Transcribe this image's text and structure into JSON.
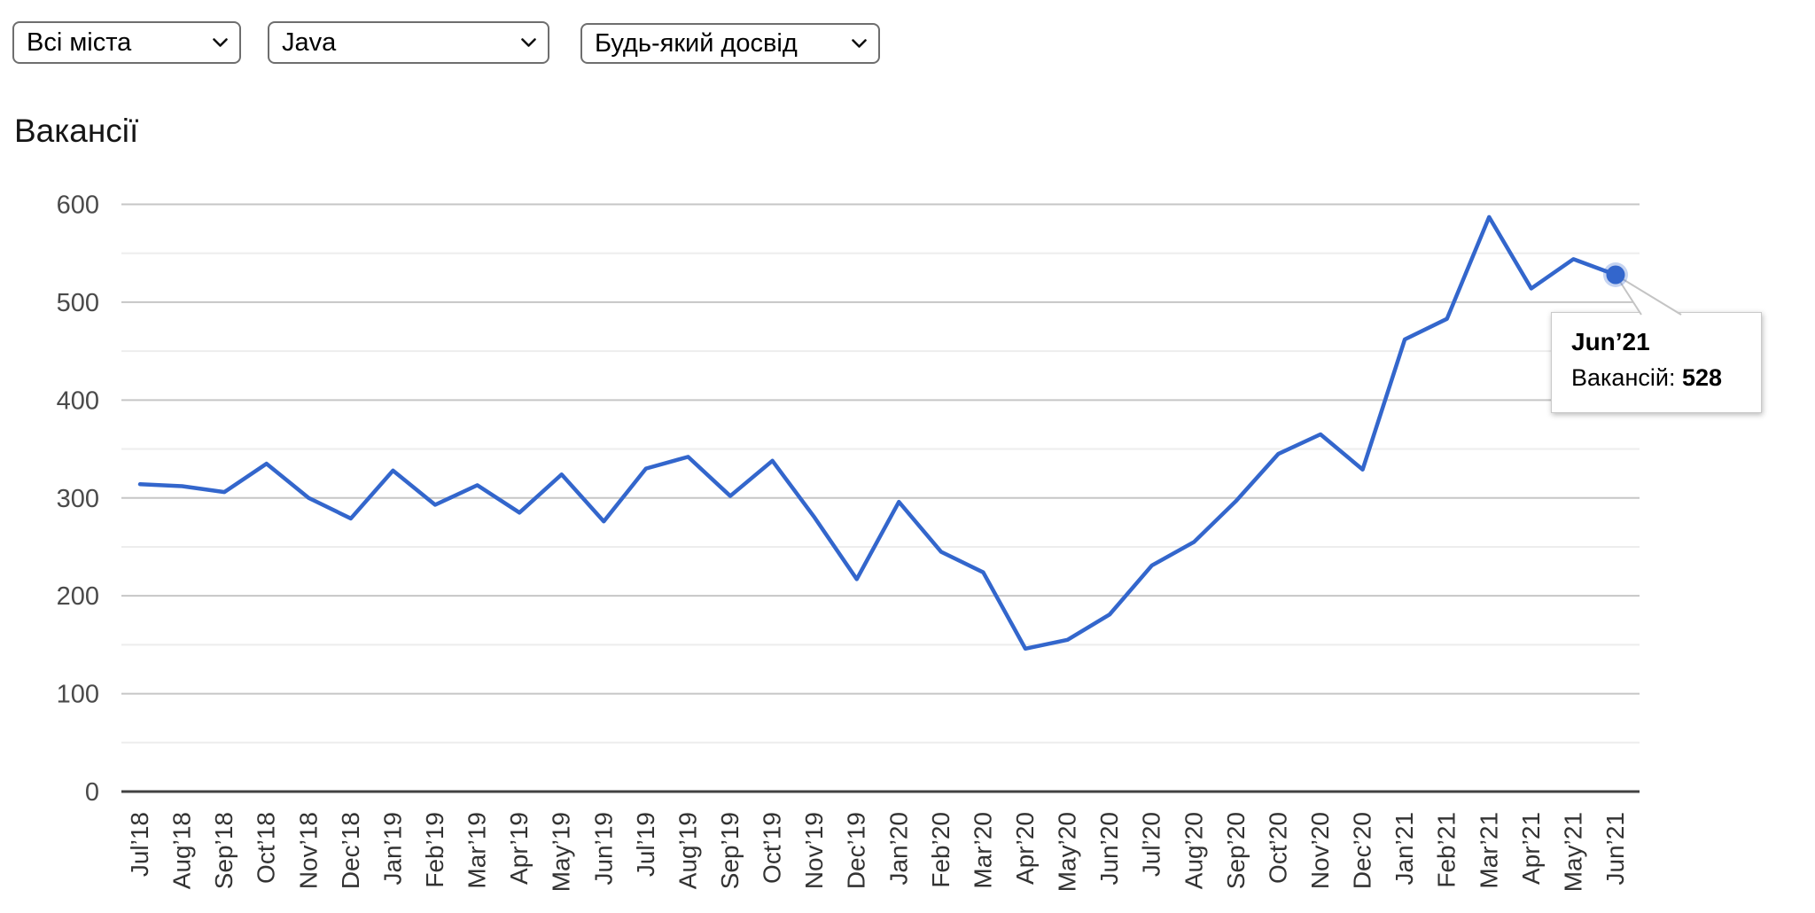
{
  "filters": {
    "city": {
      "value": "Всі міста"
    },
    "technology": {
      "value": "Java"
    },
    "experience": {
      "value": "Будь-який досвід"
    }
  },
  "chart": {
    "title": "Вакансії"
  },
  "tooltip": {
    "month": "Jun’21",
    "label": "Вакансій:",
    "value": "528"
  },
  "colors": {
    "line": "#3366cc",
    "axis_baseline": "#424242",
    "grid_major": "#c6c6c6",
    "grid_minor": "#ededed",
    "y_label": "#4a4a4a",
    "x_label": "#333333"
  },
  "chart_data": {
    "type": "line",
    "title": "Вакансії",
    "x": [
      "Jul’18",
      "Aug’18",
      "Sep’18",
      "Oct’18",
      "Nov’18",
      "Dec’18",
      "Jan’19",
      "Feb’19",
      "Mar’19",
      "Apr’19",
      "May’19",
      "Jun’19",
      "Jul’19",
      "Aug’19",
      "Sep’19",
      "Oct’19",
      "Nov’19",
      "Dec’19",
      "Jan’20",
      "Feb’20",
      "Mar’20",
      "Apr’20",
      "May’20",
      "Jun’20",
      "Jul’20",
      "Aug’20",
      "Sep’20",
      "Oct’20",
      "Nov’20",
      "Dec’20",
      "Jan’21",
      "Feb’21",
      "Mar’21",
      "Apr’21",
      "May’21",
      "Jun’21"
    ],
    "series": [
      {
        "name": "Вакансій",
        "values": [
          314,
          312,
          306,
          335,
          300,
          279,
          328,
          293,
          313,
          285,
          324,
          276,
          330,
          342,
          302,
          338,
          280,
          217,
          296,
          245,
          224,
          146,
          155,
          181,
          231,
          255,
          297,
          345,
          365,
          329,
          462,
          483,
          587,
          514,
          544,
          528
        ]
      }
    ],
    "ylim": [
      0,
      600
    ],
    "y_major_step": 100,
    "y_minor_step": 50,
    "yticks": [
      0,
      100,
      200,
      300,
      400,
      500,
      600
    ],
    "grid": true,
    "legend": "none",
    "highlight_point": {
      "x": "Jun’21",
      "value": 528
    }
  }
}
